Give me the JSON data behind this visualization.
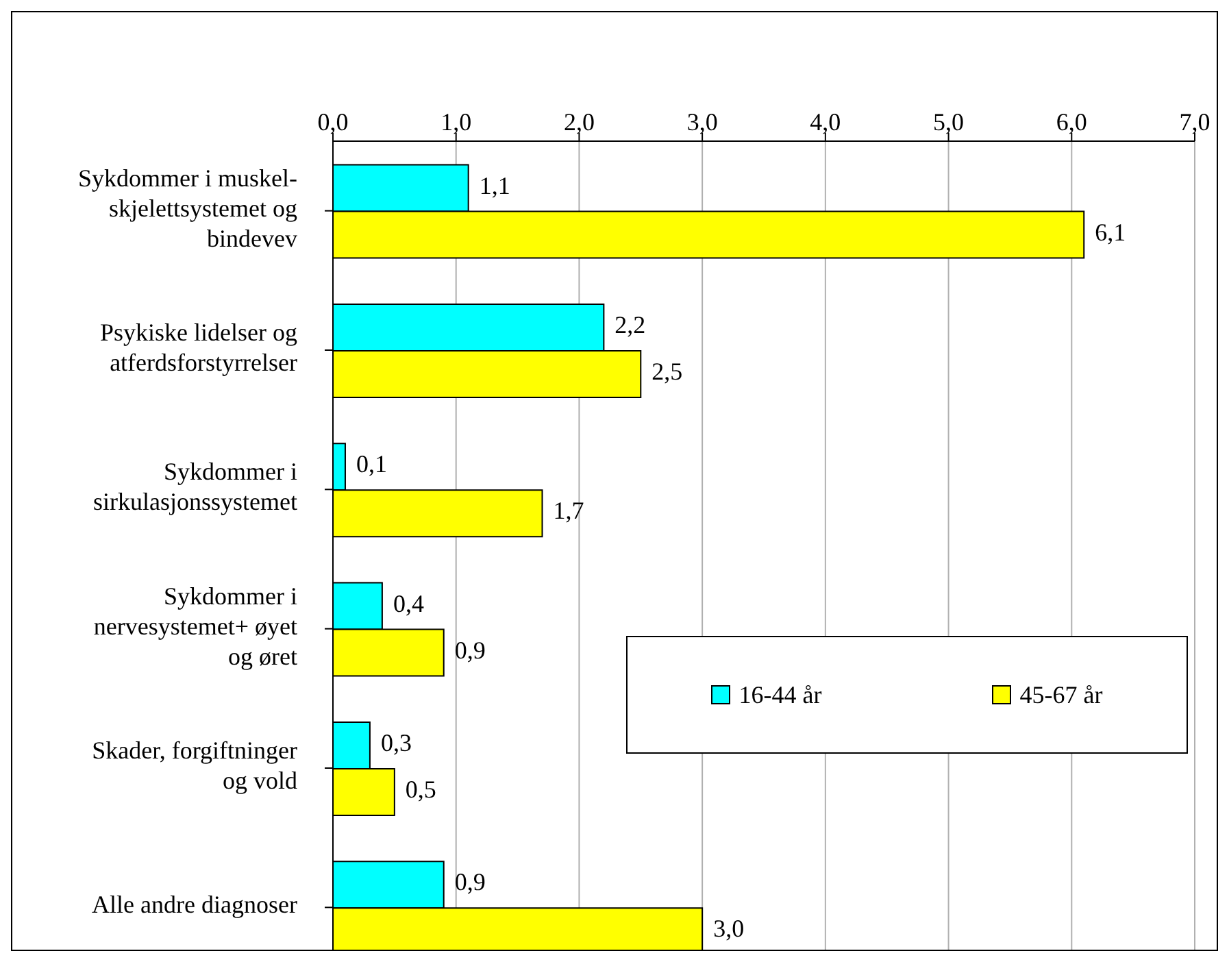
{
  "chart_data": {
    "type": "bar",
    "orientation": "horizontal",
    "categories": [
      "Sykdommer i muskel-skjelettsystemet og bindevev",
      "Psykiske lidelser og atferdsforstyrrelser",
      "Sykdommer i sirkulasjonssystemet",
      "Sykdommer i nervesystemet+ øyet og øret",
      "Skader, forgiftninger og vold",
      "Alle andre diagnoser"
    ],
    "series": [
      {
        "name": "16-44 år",
        "color": "#00ffff",
        "values": [
          1.1,
          2.2,
          0.1,
          0.4,
          0.3,
          0.9
        ],
        "value_labels": [
          "1,1",
          "2,2",
          "0,1",
          "0,4",
          "0,3",
          "0,9"
        ]
      },
      {
        "name": "45-67 år",
        "color": "#ffff00",
        "values": [
          6.1,
          2.5,
          1.7,
          0.9,
          0.5,
          3.0
        ],
        "value_labels": [
          "6,1",
          "2,5",
          "1,7",
          "0,9",
          "0,5",
          "3,0"
        ]
      }
    ],
    "xlim": [
      0,
      7
    ],
    "xticks": [
      {
        "value": 0,
        "label": "0,0"
      },
      {
        "value": 1,
        "label": "1,0"
      },
      {
        "value": 2,
        "label": "2,0"
      },
      {
        "value": 3,
        "label": "3,0"
      },
      {
        "value": 4,
        "label": "4,0"
      },
      {
        "value": 5,
        "label": "5,0"
      },
      {
        "value": 6,
        "label": "6,0"
      },
      {
        "value": 7,
        "label": "7,0"
      }
    ],
    "grid": "x",
    "legend": "right"
  }
}
